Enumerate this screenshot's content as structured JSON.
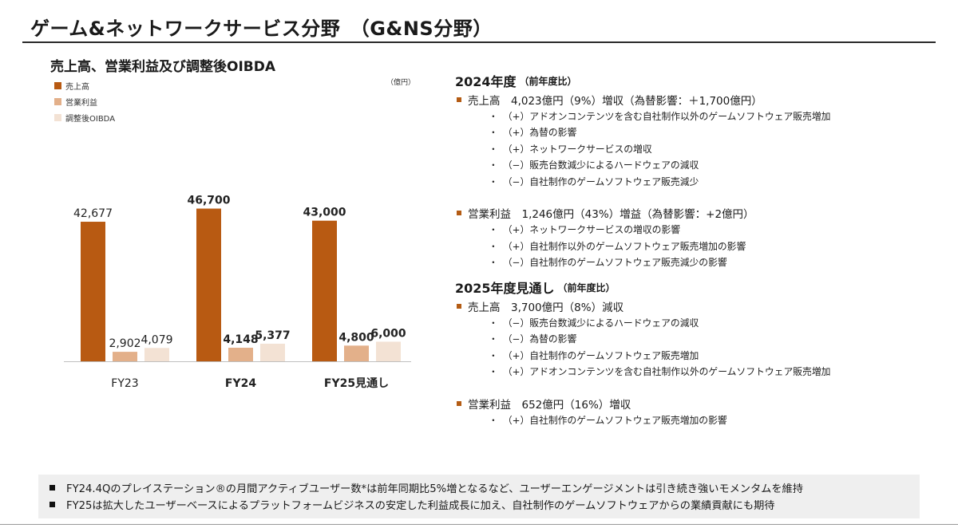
{
  "page": {
    "title": "ゲーム&ネットワークサービス分野　（G&NS分野）"
  },
  "chart_data": {
    "type": "bar",
    "title": "売上高、営業利益及び調整後OIBDA",
    "unit": "（億円）",
    "categories": [
      "FY23",
      "FY24",
      "FY25見通し"
    ],
    "series": [
      {
        "name": "売上高",
        "color": "#b85a12",
        "values": [
          42677,
          46700,
          43000
        ],
        "labels": [
          "42,677",
          "46,700",
          "43,000"
        ]
      },
      {
        "name": "営業利益",
        "color": "#e3b08a",
        "values": [
          2902,
          4148,
          4800
        ],
        "labels": [
          "2,902",
          "4,148",
          "4,800"
        ]
      },
      {
        "name": "調整後OIBDA",
        "color": "#f3e2d4",
        "values": [
          4079,
          5377,
          6000
        ],
        "labels": [
          "4,079",
          "5,377",
          "6,000"
        ]
      }
    ],
    "bold_categories": [
      false,
      true,
      true
    ],
    "ylim": [
      0,
      50000
    ],
    "grid": false,
    "legend": "top-left"
  },
  "sections": [
    {
      "heading": "2024年度",
      "sub": "（前年度比）",
      "items": [
        {
          "head": "売上高　4,023億円（9%）増収（為替影響：＋1,700億円）",
          "lines": [
            "（+）アドオンコンテンツを含む自社制作以外のゲームソフトウェア販売増加",
            "（+）為替の影響",
            "（+）ネットワークサービスの増収",
            "（−）販売台数減少によるハードウェアの減収",
            "（−）自社制作のゲームソフトウェア販売減少"
          ]
        },
        {
          "head": "営業利益　1,246億円（43%）増益（為替影響：+2億円）",
          "lines": [
            "（+）ネットワークサービスの増収の影響",
            "（+）自社制作以外のゲームソフトウェア販売増加の影響",
            "（−）自社制作のゲームソフトウェア販売減少の影響"
          ]
        }
      ]
    },
    {
      "heading": "2025年度見通し",
      "sub": "（前年度比）",
      "items": [
        {
          "head": "売上高　3,700億円（8%）減収",
          "lines": [
            "（−）販売台数減少によるハードウェアの減収",
            "（−）為替の影響",
            "（+）自社制作のゲームソフトウェア販売増加",
            "（+）アドオンコンテンツを含む自社制作以外のゲームソフトウェア販売増加"
          ]
        },
        {
          "head": "営業利益　652億円（16%）増収",
          "lines": [
            "（+）自社制作のゲームソフトウェア販売増加の影響"
          ]
        }
      ]
    }
  ],
  "footer": [
    "FY24.4Qのプレイステーション®の月間アクティブユーザー数*は前年同期比5%増となるなど、ユーザーエンゲージメントは引き続き強いモメンタムを維持",
    "FY25は拡大したユーザーベースによるプラットフォームビジネスの安定した利益成長に加え、自社制作のゲームソフトウェアからの業績貢献にも期待"
  ]
}
